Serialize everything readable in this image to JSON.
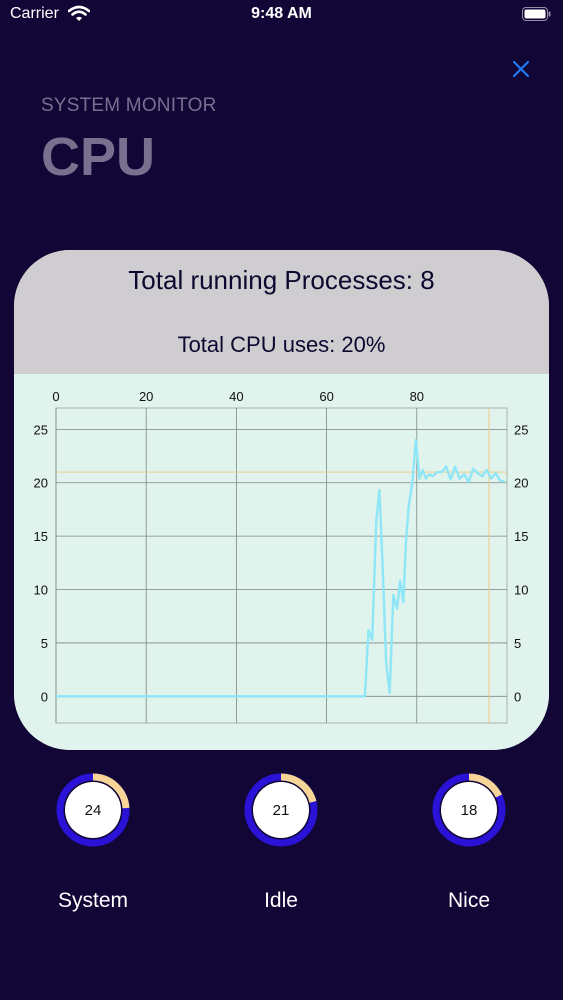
{
  "status_bar": {
    "carrier": "Carrier",
    "time": "9:48 AM"
  },
  "header": {
    "subtitle": "SYSTEM MONITOR",
    "title": "CPU"
  },
  "card": {
    "processes_text": "Total running Processes: 8",
    "cpu_text": "Total CPU uses: 20%"
  },
  "colors": {
    "background": "#110636",
    "card_header": "#cfcdd0",
    "chart_bg": "#e0f3ed",
    "line": "#8fe6f7",
    "gauge_ring": "#2a13d6",
    "gauge_accent": "#f6d596",
    "close": "#1f7cf2"
  },
  "chart_data": {
    "type": "line",
    "title": "",
    "xlabel": "",
    "ylabel": "",
    "xlim": [
      0,
      100
    ],
    "ylim": [
      -2.5,
      27
    ],
    "x_ticks": [
      0,
      20,
      40,
      60,
      80
    ],
    "y_ticks": [
      0,
      5,
      10,
      15,
      20,
      25
    ],
    "grid": true,
    "reference_y": 21,
    "reference_x": 96,
    "series": [
      {
        "x": [
          0,
          68.5,
          69.3,
          70.1,
          71,
          71.7,
          72.4,
          73.2,
          74,
          74.8,
          75.6,
          76.3,
          77,
          77.6,
          78.2,
          79,
          79.8,
          80.6,
          81.3,
          82,
          82.8,
          83.5,
          84.5,
          85.5,
          86.5,
          87.5,
          88.5,
          89.5,
          90.5,
          91.5,
          92.5,
          93.5,
          94.5,
          95.5,
          96.5,
          97.5,
          98.5,
          99.5
        ],
        "values": [
          0,
          0,
          6.2,
          5.3,
          16.3,
          19.3,
          12.5,
          3.2,
          0.3,
          9.5,
          8.2,
          10.8,
          8.8,
          14.5,
          17.8,
          20,
          24,
          20.4,
          21.2,
          20.4,
          20.8,
          20.6,
          21,
          21,
          21.5,
          20.3,
          21.5,
          20.4,
          20.8,
          20.1,
          21.3,
          20.9,
          20.6,
          21.2,
          20.4,
          20.9,
          20.2,
          20.1
        ]
      }
    ]
  },
  "gauges": [
    {
      "value": "24",
      "label": "System",
      "fraction": 0.24
    },
    {
      "value": "21",
      "label": "Idle",
      "fraction": 0.21
    },
    {
      "value": "18",
      "label": "Nice",
      "fraction": 0.18
    }
  ]
}
